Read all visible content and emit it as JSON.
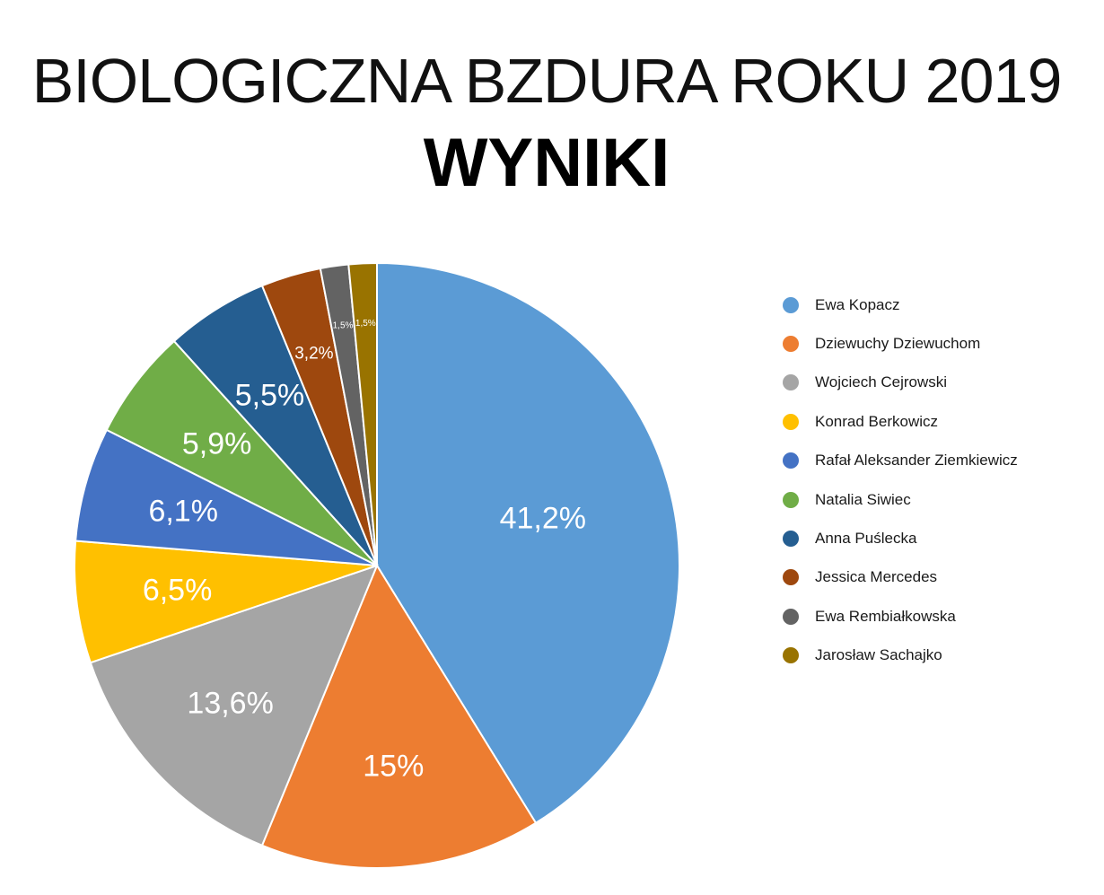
{
  "chart_data": {
    "type": "pie",
    "title": "BIOLOGICZNA BZDURA ROKU 2019",
    "subtitle": "WYNIKI",
    "legend_position": "right",
    "slices": [
      {
        "name": "Ewa Kopacz",
        "value": 41.2,
        "label": "41,2%",
        "color": "#5B9BD5"
      },
      {
        "name": "Dziewuchy Dziewuchom",
        "value": 15.0,
        "label": "15%",
        "color": "#ED7D31"
      },
      {
        "name": "Wojciech Cejrowski",
        "value": 13.6,
        "label": "13,6%",
        "color": "#A5A5A5"
      },
      {
        "name": "Konrad Berkowicz",
        "value": 6.5,
        "label": "6,5%",
        "color": "#FFC000"
      },
      {
        "name": "Rafał Aleksander Ziemkiewicz",
        "value": 6.1,
        "label": "6,1%",
        "color": "#4472C4"
      },
      {
        "name": "Natalia Siwiec",
        "value": 5.9,
        "label": "5,9%",
        "color": "#70AD47"
      },
      {
        "name": "Anna Puślecka",
        "value": 5.5,
        "label": "5,5%",
        "color": "#255E91"
      },
      {
        "name": "Jessica Mercedes",
        "value": 3.2,
        "label": "3,2%",
        "color": "#9E480E"
      },
      {
        "name": "Ewa Rembiałkowska",
        "value": 1.5,
        "label": "1,5%",
        "color": "#636363"
      },
      {
        "name": "Jarosław Sachajko",
        "value": 1.5,
        "label": "1,5%",
        "color": "#997300"
      }
    ]
  }
}
